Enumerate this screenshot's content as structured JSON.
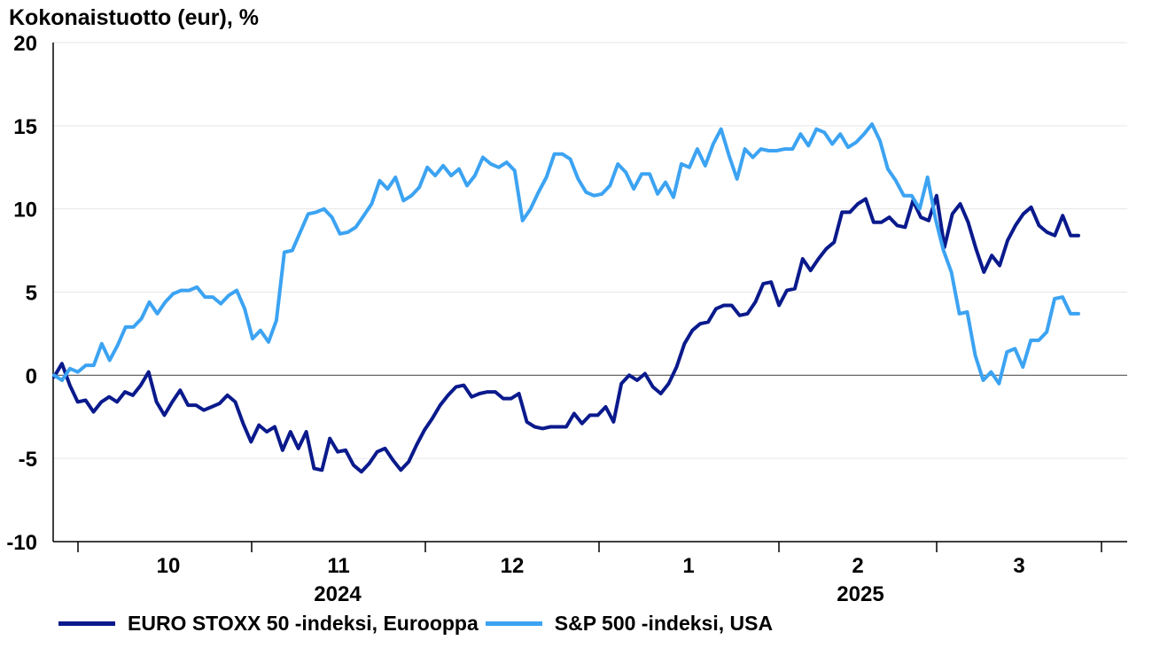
{
  "colors": {
    "euro_stoxx": "#0a1a8c",
    "sp500": "#3ca3f2",
    "axis": "#000000",
    "grid": "#e6e6e6"
  },
  "chart_data": {
    "type": "line",
    "title": "Kokonaistuotto (eur), %",
    "ylim": [
      -10,
      20
    ],
    "yticks": [
      "20",
      "15",
      "10",
      "5",
      "0",
      "-5",
      "-10"
    ],
    "months": [
      "10",
      "11",
      "12",
      "1",
      "2",
      "3"
    ],
    "years": [
      "2024",
      "2025"
    ],
    "grid": true,
    "legend_position": "bottom-left",
    "series": [
      {
        "name": "EURO STOXX 50 -indeksi, Eurooppa",
        "color": "#0a1a8c",
        "values": [
          -0.1,
          0.7,
          -0.6,
          -1.6,
          -1.5,
          -2.2,
          -1.6,
          -1.3,
          -1.6,
          -1.0,
          -1.2,
          -0.6,
          0.2,
          -1.6,
          -2.4,
          -1.6,
          -0.9,
          -1.8,
          -1.8,
          -2.1,
          -1.9,
          -1.7,
          -1.2,
          -1.6,
          -2.9,
          -4.0,
          -3.0,
          -3.4,
          -3.1,
          -4.5,
          -3.4,
          -4.4,
          -3.4,
          -5.6,
          -5.7,
          -3.8,
          -4.6,
          -4.5,
          -5.4,
          -5.8,
          -5.3,
          -4.6,
          -4.4,
          -5.1,
          -5.7,
          -5.2,
          -4.2,
          -3.3,
          -2.6,
          -1.8,
          -1.2,
          -0.7,
          -0.6,
          -1.3,
          -1.1,
          -1.0,
          -1.0,
          -1.4,
          -1.4,
          -1.1,
          -2.8,
          -3.1,
          -3.2,
          -3.1,
          -3.1,
          -3.1,
          -2.3,
          -2.9,
          -2.4,
          -2.4,
          -1.9,
          -2.8,
          -0.5,
          0.0,
          -0.3,
          0.1,
          -0.7,
          -1.1,
          -0.5,
          0.5,
          1.9,
          2.7,
          3.1,
          3.2,
          4.0,
          4.2,
          4.2,
          3.6,
          3.7,
          4.4,
          5.5,
          5.6,
          4.2,
          5.1,
          5.2,
          7.0,
          6.3,
          7.0,
          7.6,
          8.0,
          9.8,
          9.8,
          10.3,
          10.6,
          9.2,
          9.2,
          9.5,
          9.0,
          8.9,
          10.5,
          9.5,
          9.3,
          10.8,
          7.7,
          9.7,
          10.3,
          9.2,
          7.6,
          6.2,
          7.2,
          6.6,
          8.1,
          9.0,
          9.7,
          10.1,
          9.0,
          8.6,
          8.4,
          9.6,
          8.4,
          8.4
        ]
      },
      {
        "name": "S&P 500 -indeksi, USA",
        "color": "#3ca3f2",
        "values": [
          0.0,
          -0.3,
          0.4,
          0.2,
          0.6,
          0.6,
          1.9,
          0.9,
          1.8,
          2.9,
          2.9,
          3.4,
          4.4,
          3.7,
          4.4,
          4.9,
          5.1,
          5.1,
          5.3,
          4.7,
          4.7,
          4.3,
          4.8,
          5.1,
          4.0,
          2.2,
          2.7,
          2.0,
          3.3,
          7.4,
          7.5,
          8.6,
          9.7,
          9.8,
          10.0,
          9.5,
          8.5,
          8.6,
          8.9,
          9.6,
          10.3,
          11.7,
          11.2,
          11.9,
          10.5,
          10.8,
          11.3,
          12.5,
          12.0,
          12.6,
          12.0,
          12.4,
          11.4,
          12.0,
          13.1,
          12.7,
          12.5,
          12.8,
          12.3,
          9.3,
          10.0,
          11.0,
          11.9,
          13.3,
          13.3,
          13.0,
          11.8,
          11.0,
          10.8,
          10.9,
          11.4,
          12.7,
          12.2,
          11.2,
          12.1,
          12.1,
          10.9,
          11.6,
          10.7,
          12.7,
          12.5,
          13.6,
          12.6,
          13.9,
          14.8,
          13.2,
          11.8,
          13.6,
          13.1,
          13.6,
          13.5,
          13.5,
          13.6,
          13.6,
          14.5,
          13.8,
          14.8,
          14.6,
          13.9,
          14.5,
          13.7,
          14.0,
          14.5,
          15.1,
          14.1,
          12.4,
          11.7,
          10.8,
          10.8,
          10.0,
          11.9,
          9.4,
          7.5,
          6.2,
          3.7,
          3.8,
          1.2,
          -0.3,
          0.2,
          -0.5,
          1.4,
          1.6,
          0.5,
          2.1,
          2.1,
          2.6,
          4.6,
          4.7,
          3.7,
          3.7
        ]
      }
    ]
  }
}
